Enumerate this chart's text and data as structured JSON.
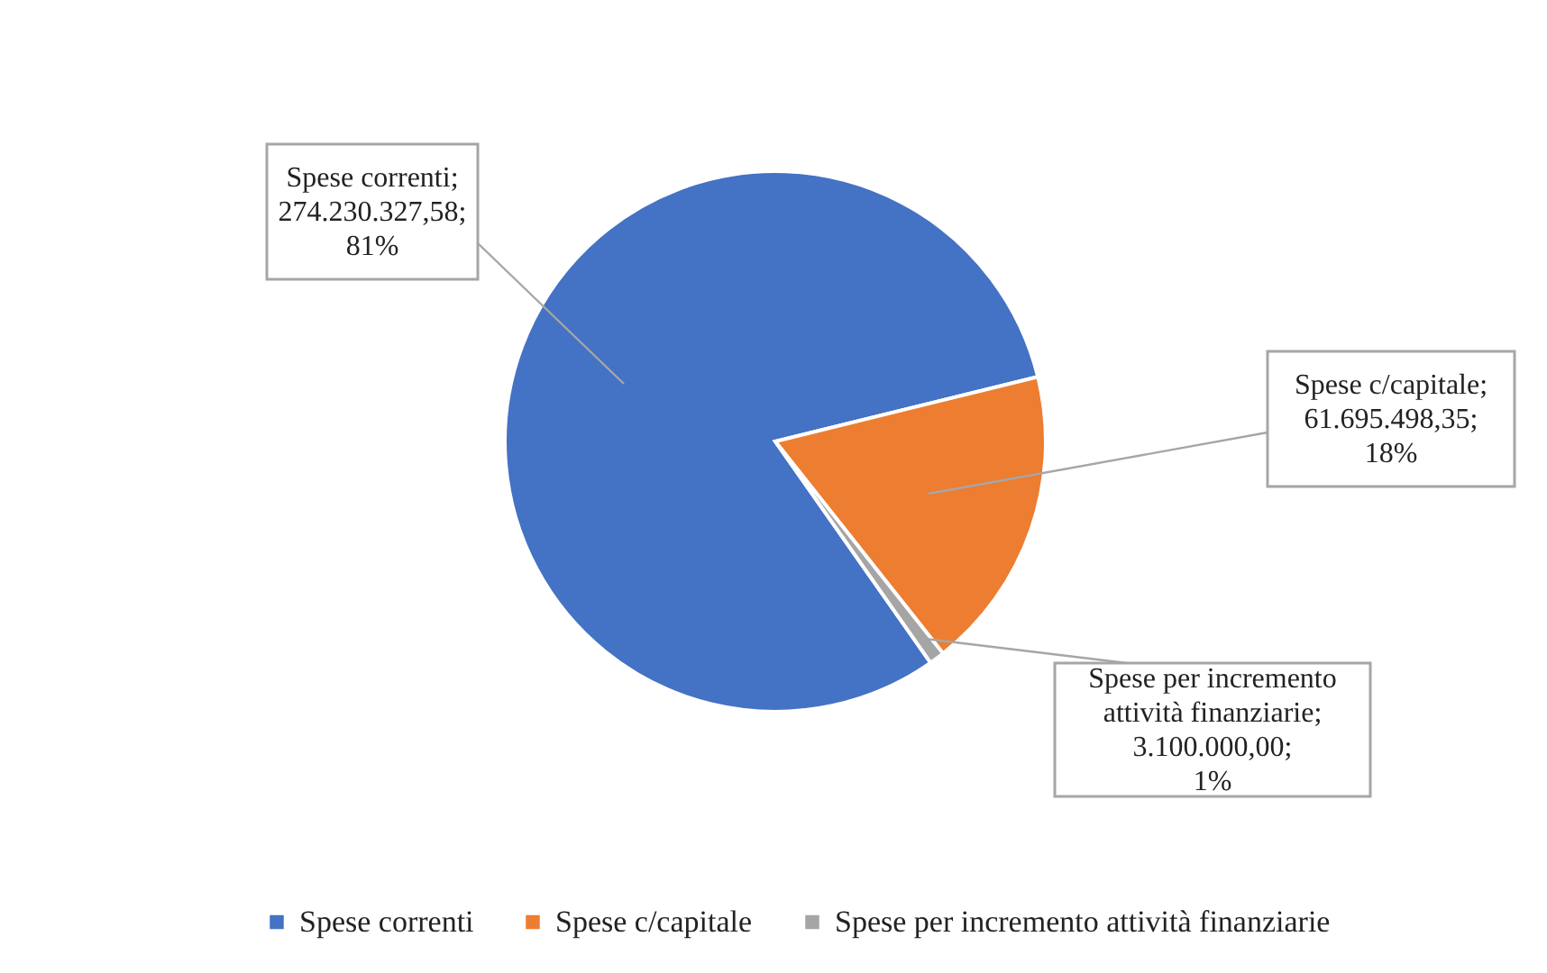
{
  "chart_data": {
    "type": "pie",
    "categories": [
      "Spese correnti",
      "Spese c/capitale",
      "Spese per incremento attività finanziarie"
    ],
    "values": [
      274230327.58,
      61695498.35,
      3100000.0
    ],
    "colors": [
      "#4472c4",
      "#ed7d31",
      "#a5a5a5"
    ],
    "value_labels": [
      "Spese correnti;\n274.230.327,58;\n81%",
      "Spese c/capitale;\n61.695.498,35;\n18%",
      "Spese per incremento\nattività finanziarie;\n3.100.000,00;\n1%"
    ],
    "legend": "bottom"
  }
}
